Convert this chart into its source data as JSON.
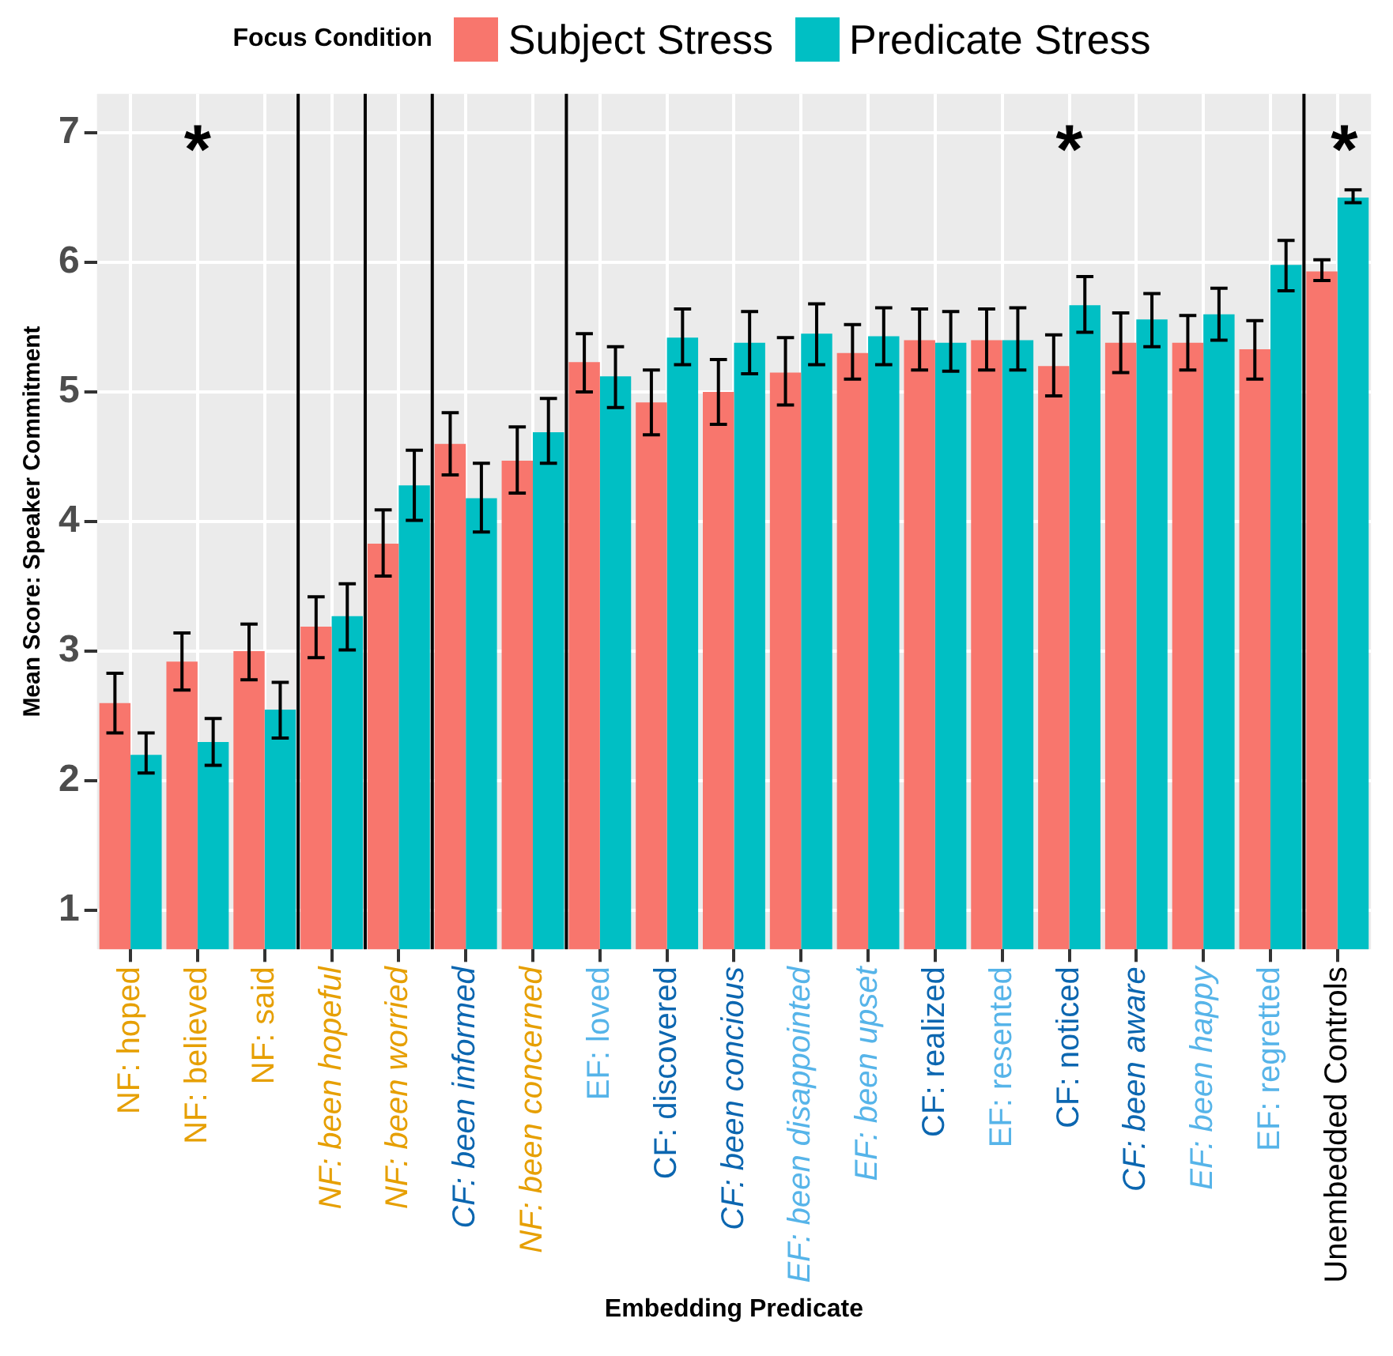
{
  "chart_data": {
    "type": "bar",
    "xlabel": "Embedding Predicate",
    "ylabel": "Mean Score: Speaker Commitment",
    "legend_title": "Focus Condition",
    "legend": "top",
    "categories": [
      "NF: hoped",
      "NF: believed",
      "NF: said",
      "NF: been hopeful",
      "NF: been worried",
      "CF: been informed",
      "NF: been concerned",
      "EF: loved",
      "CF: discovered",
      "CF: been concious",
      "EF: been disappointed",
      "EF: been upset",
      "CF: realized",
      "EF: resented",
      "CF: noticed",
      "CF: been aware",
      "EF: been happy",
      "EF: regretted",
      "Unembedded Controls"
    ],
    "series": [
      {
        "name": "Subject Stress",
        "color": "#f8766d",
        "values": [
          2.6,
          2.92,
          3.0,
          3.19,
          3.83,
          4.6,
          4.47,
          5.23,
          4.92,
          5.0,
          5.15,
          5.3,
          5.4,
          5.4,
          5.2,
          5.38,
          5.38,
          5.33,
          5.93
        ],
        "errors": [
          [
            2.37,
            2.83
          ],
          [
            2.7,
            3.14
          ],
          [
            2.78,
            3.21
          ],
          [
            2.95,
            3.42
          ],
          [
            3.58,
            4.09
          ],
          [
            4.36,
            4.84
          ],
          [
            4.22,
            4.73
          ],
          [
            5.0,
            5.45
          ],
          [
            4.67,
            5.17
          ],
          [
            4.75,
            5.25
          ],
          [
            4.9,
            5.42
          ],
          [
            5.1,
            5.52
          ],
          [
            5.17,
            5.64
          ],
          [
            5.17,
            5.64
          ],
          [
            4.97,
            5.44
          ],
          [
            5.15,
            5.61
          ],
          [
            5.17,
            5.59
          ],
          [
            5.1,
            5.55
          ],
          [
            5.86,
            6.02
          ]
        ]
      },
      {
        "name": "Predicate Stress",
        "color": "#00bfc4",
        "values": [
          2.2,
          2.3,
          2.55,
          3.27,
          4.28,
          4.18,
          4.69,
          5.12,
          5.42,
          5.38,
          5.45,
          5.43,
          5.38,
          5.4,
          5.67,
          5.56,
          5.6,
          5.98,
          6.5
        ],
        "errors": [
          [
            2.06,
            2.37
          ],
          [
            2.12,
            2.48
          ],
          [
            2.33,
            2.76
          ],
          [
            3.01,
            3.52
          ],
          [
            4.01,
            4.55
          ],
          [
            3.92,
            4.45
          ],
          [
            4.45,
            4.95
          ],
          [
            4.88,
            5.35
          ],
          [
            5.21,
            5.64
          ],
          [
            5.14,
            5.62
          ],
          [
            5.21,
            5.68
          ],
          [
            5.21,
            5.65
          ],
          [
            5.16,
            5.62
          ],
          [
            5.17,
            5.65
          ],
          [
            5.46,
            5.89
          ],
          [
            5.35,
            5.76
          ],
          [
            5.4,
            5.8
          ],
          [
            5.78,
            6.17
          ],
          [
            6.46,
            6.56
          ]
        ]
      }
    ],
    "ylim": [
      0.7,
      7.3
    ],
    "yticks": [
      1,
      2,
      3,
      4,
      5,
      6,
      7
    ],
    "grid": true,
    "annotations": [
      "*",
      "*",
      "*"
    ]
  }
}
